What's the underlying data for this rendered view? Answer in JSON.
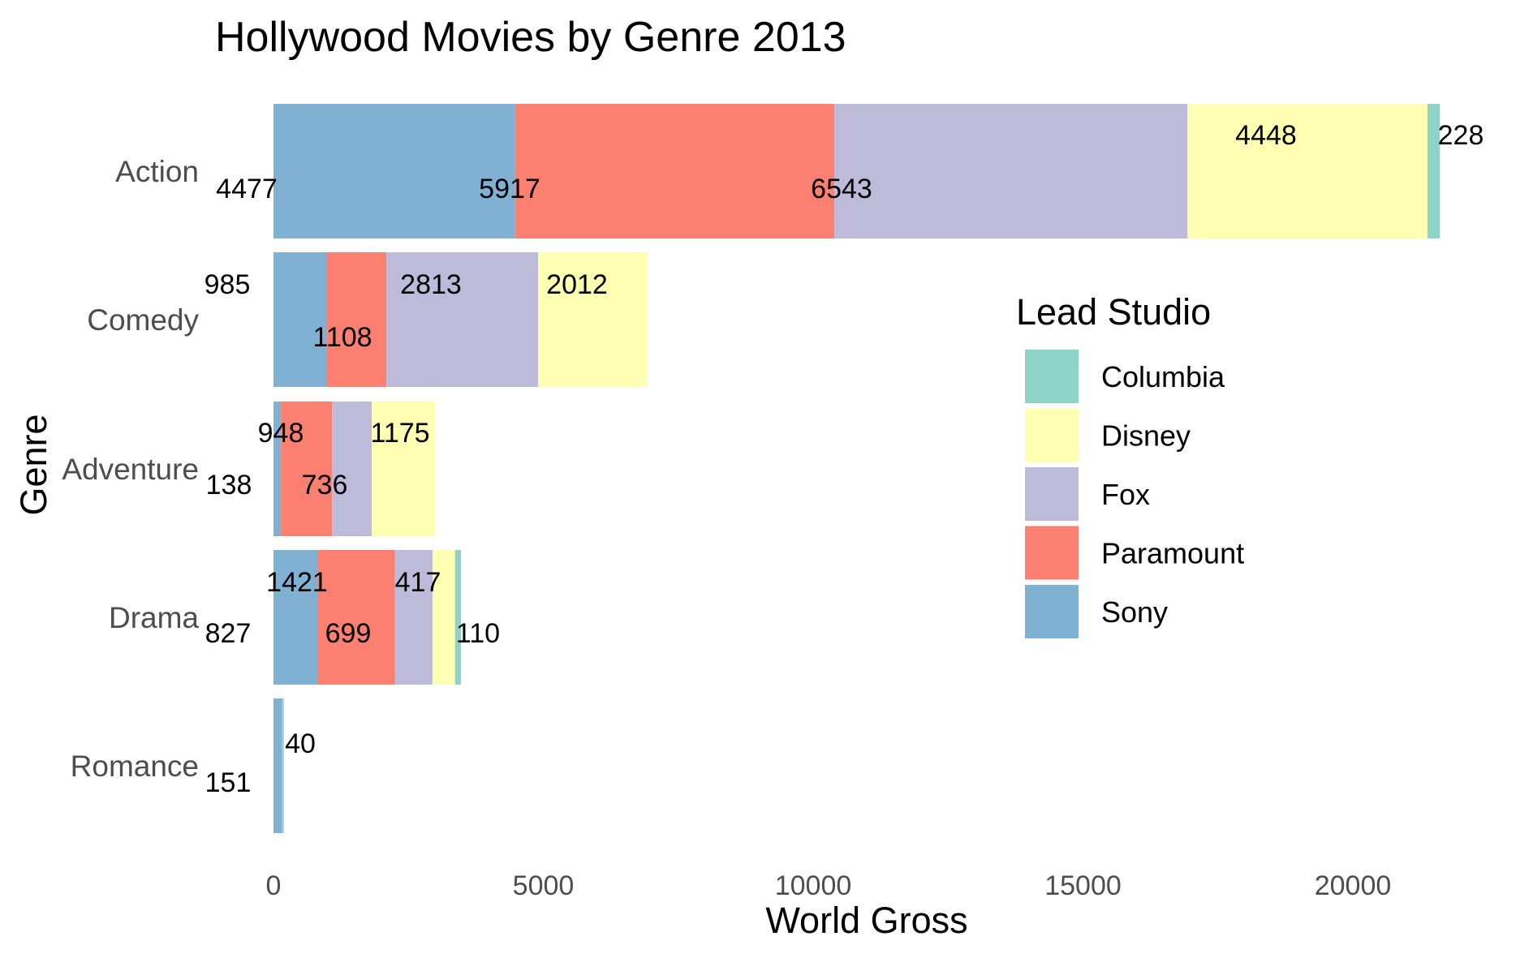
{
  "chart_data": {
    "type": "bar",
    "orientation": "horizontal",
    "stacked": true,
    "title": "Hollywood Movies by Genre 2013",
    "xlabel": "World Gross",
    "ylabel": "Genre",
    "xlim": [
      0,
      22000
    ],
    "x_ticks": [
      "0",
      "5000",
      "10000",
      "15000",
      "20000"
    ],
    "x_tick_values": [
      0,
      5000,
      10000,
      15000,
      20000
    ],
    "grid": false,
    "categories": [
      "Action",
      "Comedy",
      "Adventure",
      "Drama",
      "Romance"
    ],
    "stack_order": [
      "Sony",
      "Paramount",
      "Fox",
      "Disney",
      "Columbia"
    ],
    "series": [
      {
        "name": "Sony",
        "color": "#80B1D3",
        "values": [
          4477,
          985,
          138,
          827,
          151
        ]
      },
      {
        "name": "Paramount",
        "color": "#FB8072",
        "values": [
          5917,
          1108,
          948,
          1421,
          0
        ]
      },
      {
        "name": "Fox",
        "color": "#BEBADA",
        "values": [
          6543,
          2813,
          736,
          699,
          0
        ]
      },
      {
        "name": "Disney",
        "color": "#FFFFB3",
        "values": [
          4448,
          2012,
          1175,
          417,
          0
        ]
      },
      {
        "name": "Columbia",
        "color": "#8DD3C7",
        "values": [
          228,
          0,
          0,
          110,
          40
        ]
      }
    ],
    "data_labels": [
      {
        "text": "4477",
        "category": "Action",
        "studio": "Sony"
      },
      {
        "text": "5917",
        "category": "Action",
        "studio": "Paramount"
      },
      {
        "text": "6543",
        "category": "Action",
        "studio": "Fox"
      },
      {
        "text": "4448",
        "category": "Action",
        "studio": "Disney"
      },
      {
        "text": "228",
        "category": "Action",
        "studio": "Columbia"
      },
      {
        "text": "985",
        "category": "Comedy",
        "studio": "Sony"
      },
      {
        "text": "1108",
        "category": "Comedy",
        "studio": "Paramount"
      },
      {
        "text": "2813",
        "category": "Comedy",
        "studio": "Fox"
      },
      {
        "text": "2012",
        "category": "Comedy",
        "studio": "Disney"
      },
      {
        "text": "138",
        "category": "Adventure",
        "studio": "Sony"
      },
      {
        "text": "948",
        "category": "Adventure",
        "studio": "Paramount"
      },
      {
        "text": "736",
        "category": "Adventure",
        "studio": "Fox"
      },
      {
        "text": "1175",
        "category": "Adventure",
        "studio": "Disney"
      },
      {
        "text": "827",
        "category": "Drama",
        "studio": "Sony"
      },
      {
        "text": "1421",
        "category": "Drama",
        "studio": "Paramount"
      },
      {
        "text": "699",
        "category": "Drama",
        "studio": "Fox"
      },
      {
        "text": "417",
        "category": "Drama",
        "studio": "Disney"
      },
      {
        "text": "110",
        "category": "Drama",
        "studio": "Columbia"
      },
      {
        "text": "151",
        "category": "Romance",
        "studio": "Sony"
      },
      {
        "text": "40",
        "category": "Romance",
        "studio": "Columbia"
      }
    ],
    "legend": {
      "title": "Lead Studio",
      "placement": "right",
      "entries": [
        {
          "name": "Columbia",
          "color": "#8DD3C7"
        },
        {
          "name": "Disney",
          "color": "#FFFFB3"
        },
        {
          "name": "Fox",
          "color": "#BEBADA"
        },
        {
          "name": "Paramount",
          "color": "#FB8072"
        },
        {
          "name": "Sony",
          "color": "#80B1D3"
        }
      ]
    }
  }
}
